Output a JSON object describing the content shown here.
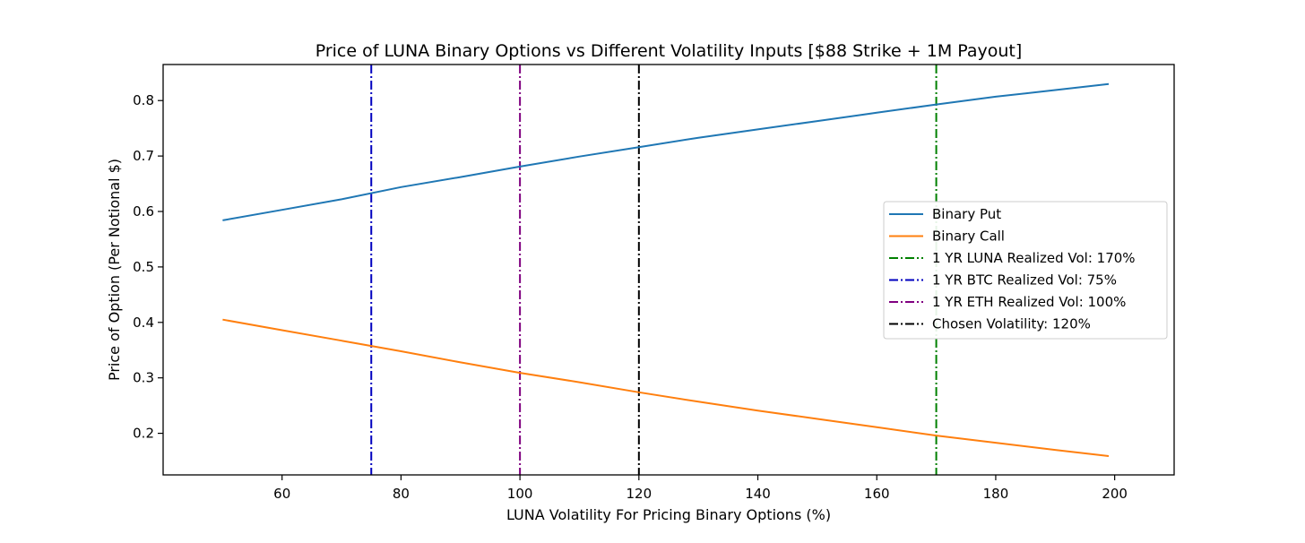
{
  "chart_data": {
    "type": "line",
    "title": "Price of LUNA Binary Options vs Different Volatility Inputs [$88 Strike + 1M Payout]",
    "xlabel": "LUNA Volatility For Pricing Binary Options (%)",
    "ylabel": "Price of Option (Per Notional $)",
    "xlim": [
      40,
      210
    ],
    "ylim": [
      0.125,
      0.865
    ],
    "xticks": [
      60,
      80,
      100,
      120,
      140,
      160,
      180,
      200
    ],
    "yticks": [
      0.2,
      0.3,
      0.4,
      0.5,
      0.6,
      0.7,
      0.8
    ],
    "grid": false,
    "legend_position": "center-right",
    "series": [
      {
        "name": "Binary Put",
        "color": "#1f77b4",
        "style": "solid",
        "x": [
          50,
          60,
          70,
          80,
          90,
          100,
          110,
          120,
          130,
          140,
          150,
          160,
          170,
          180,
          190,
          199
        ],
        "y": [
          0.584,
          0.603,
          0.622,
          0.644,
          0.662,
          0.681,
          0.699,
          0.716,
          0.733,
          0.748,
          0.763,
          0.778,
          0.793,
          0.807,
          0.819,
          0.83
        ]
      },
      {
        "name": "Binary Call",
        "color": "#ff7f0e",
        "style": "solid",
        "x": [
          50,
          60,
          70,
          80,
          90,
          100,
          110,
          120,
          130,
          140,
          150,
          160,
          170,
          180,
          190,
          199
        ],
        "y": [
          0.405,
          0.386,
          0.367,
          0.348,
          0.328,
          0.309,
          0.292,
          0.274,
          0.257,
          0.241,
          0.226,
          0.211,
          0.196,
          0.183,
          0.17,
          0.159
        ]
      }
    ],
    "vlines": [
      {
        "name": "1 YR LUNA Realized Vol: 170%",
        "x": 170,
        "color": "#008000",
        "style": "dashdot"
      },
      {
        "name": "1 YR BTC Realized Vol: 75%",
        "x": 75,
        "color": "#0000bf",
        "style": "dashdot"
      },
      {
        "name": "1 YR ETH Realized Vol: 100%",
        "x": 100,
        "color": "#800080",
        "style": "dashdot"
      },
      {
        "name": "Chosen Volatility: 120%",
        "x": 120,
        "color": "#000000",
        "style": "dashdot"
      }
    ]
  }
}
